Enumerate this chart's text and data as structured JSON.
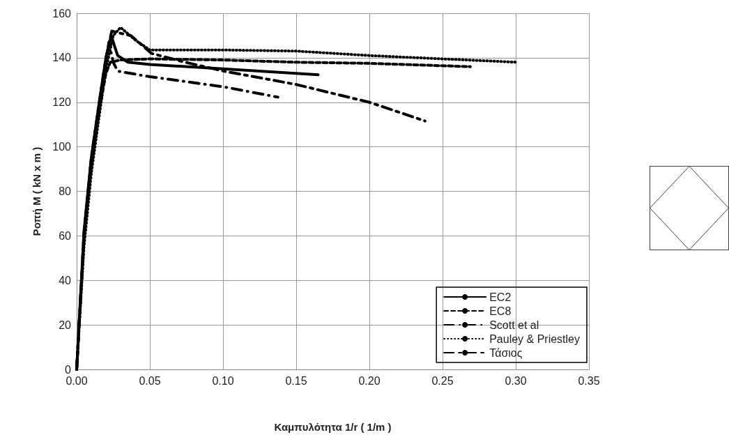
{
  "chart_data": {
    "type": "line",
    "xlabel": "Καμπυλότητα 1/r ( 1/m )",
    "ylabel": "Ροπή Μ ( kN x m )",
    "xlim": [
      0,
      0.35
    ],
    "xticks": [
      {
        "value": 0,
        "label": "0.00"
      },
      {
        "value": 0.05,
        "label": "0.05"
      },
      {
        "value": 0.1,
        "label": "0.10"
      },
      {
        "value": 0.15,
        "label": "0.15"
      },
      {
        "value": 0.2,
        "label": "0.20"
      },
      {
        "value": 0.25,
        "label": "0.25"
      },
      {
        "value": 0.3,
        "label": "0.30"
      },
      {
        "value": 0.35,
        "label": "0.35"
      }
    ],
    "ylim": [
      0,
      160
    ],
    "yticks": [
      0,
      20,
      40,
      60,
      80,
      100,
      120,
      140,
      160
    ],
    "grid": true,
    "legend": "bottom right",
    "marker": "none",
    "series": [
      {
        "name": "EC2",
        "color": "#000000",
        "line_style": "solid",
        "x": [
          0,
          0.005,
          0.01,
          0.015,
          0.02,
          0.0236,
          0.026,
          0.028,
          0.035,
          0.05,
          0.1,
          0.165
        ],
        "values": [
          0,
          62,
          95,
          118,
          140,
          150,
          145,
          141,
          138,
          137,
          135,
          132.4
        ]
      },
      {
        "name": "EC8",
        "color": "#000000",
        "line_style": "dashed",
        "x": [
          0,
          0.005,
          0.01,
          0.015,
          0.02,
          0.023,
          0.03,
          0.05,
          0.1,
          0.15,
          0.2,
          0.269
        ],
        "values": [
          0,
          58,
          92,
          115,
          133,
          138,
          139,
          139.5,
          139,
          138,
          137.5,
          136
        ]
      },
      {
        "name": "Scott et al",
        "color": "#000000",
        "line_style": "dashdot",
        "x": [
          0,
          0.005,
          0.01,
          0.015,
          0.02,
          0.022,
          0.025,
          0.028,
          0.05,
          0.1,
          0.1375
        ],
        "values": [
          0,
          60,
          94,
          117,
          138,
          147,
          138,
          134,
          131.5,
          127,
          122.3
        ]
      },
      {
        "name": "Pauley & Priestley",
        "color": "#000000",
        "line_style": "dotted",
        "x": [
          0,
          0.005,
          0.01,
          0.015,
          0.02,
          0.025,
          0.03,
          0.04,
          0.05,
          0.1,
          0.15,
          0.2,
          0.25,
          0.301
        ],
        "values": [
          0,
          55,
          88,
          112,
          135,
          150,
          153.6,
          148,
          143.5,
          143.5,
          143,
          141,
          139.5,
          138
        ]
      },
      {
        "name": "Τάσιος",
        "color": "#000000",
        "line_style": "longdashdot",
        "x": [
          0,
          0.005,
          0.01,
          0.015,
          0.02,
          0.024,
          0.03,
          0.037,
          0.051,
          0.074,
          0.102,
          0.15,
          0.2,
          0.238
        ],
        "values": [
          0,
          61,
          95,
          118,
          140,
          152,
          151,
          150,
          142,
          138,
          133.8,
          128,
          120,
          111.6
        ]
      }
    ]
  }
}
